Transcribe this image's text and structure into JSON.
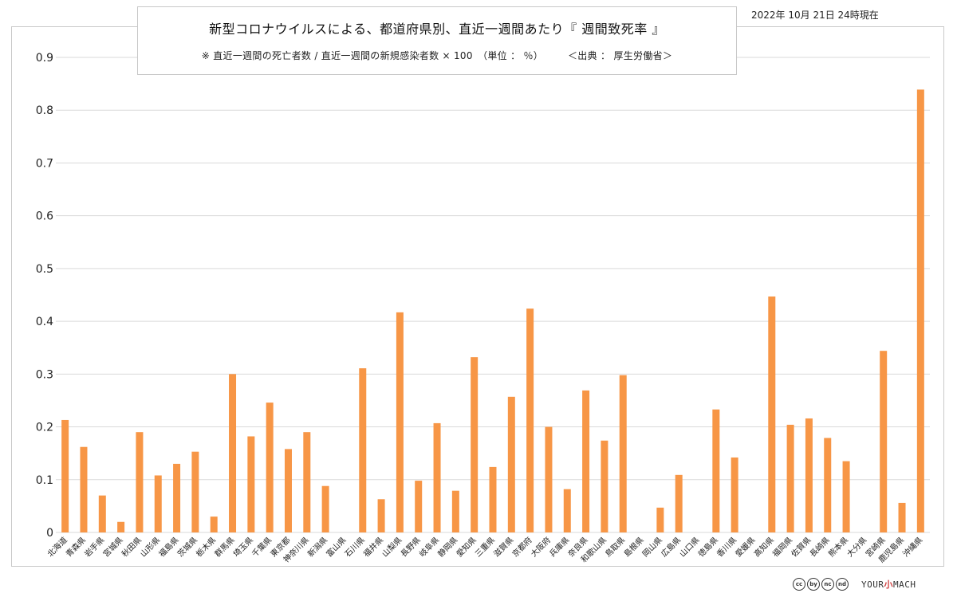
{
  "header": {
    "title": "新型コロナウイルスによる、都道府県別、直近一週間あたり『 週間致死率 』",
    "subtitle": "※ 直近一週間の死亡者数 / 直近一週間の新規感染者数 × 100　（単位 ： ％）　　　＜出典 ： 厚生労働省＞",
    "date": "2022年 10月 21日 24時現在"
  },
  "footer": {
    "license_icons": [
      "cc",
      "by",
      "nc",
      "nd"
    ],
    "brand_prefix": "YOUR",
    "brand_mid": "小",
    "brand_suffix": "MACH"
  },
  "colors": {
    "bar": "#f79646",
    "grid": "#d9d9d9",
    "axis_text": "#222222"
  },
  "chart_data": {
    "type": "bar",
    "title": "新型コロナウイルスによる、都道府県別、直近一週間あたり『 週間致死率 』",
    "ylim": [
      0,
      0.9
    ],
    "yticks": [
      "0",
      "0.1",
      "0.2",
      "0.3",
      "0.4",
      "0.5",
      "0.6",
      "0.7",
      "0.8",
      "0.9"
    ],
    "grid": true,
    "categories": [
      "北海道",
      "青森県",
      "岩手県",
      "宮城県",
      "秋田県",
      "山形県",
      "福島県",
      "茨城県",
      "栃木県",
      "群馬県",
      "埼玉県",
      "千葉県",
      "東京都",
      "神奈川県",
      "新潟県",
      "富山県",
      "石川県",
      "福井県",
      "山梨県",
      "長野県",
      "岐阜県",
      "静岡県",
      "愛知県",
      "三重県",
      "滋賀県",
      "京都府",
      "大阪府",
      "兵庫県",
      "奈良県",
      "和歌山県",
      "鳥取県",
      "島根県",
      "岡山県",
      "広島県",
      "山口県",
      "徳島県",
      "香川県",
      "愛媛県",
      "高知県",
      "福岡県",
      "佐賀県",
      "長崎県",
      "熊本県",
      "大分県",
      "宮崎県",
      "鹿児島県",
      "沖縄県"
    ],
    "values": [
      0.213,
      0.162,
      0.07,
      0.02,
      0.19,
      0.108,
      0.13,
      0.153,
      0.03,
      0.3,
      0.182,
      0.246,
      0.158,
      0.19,
      0.088,
      0,
      0.311,
      0.063,
      0.417,
      0.098,
      0.207,
      0.079,
      0.332,
      0.124,
      0.257,
      0.424,
      0.2,
      0.082,
      0.269,
      0.174,
      0.298,
      0,
      0.047,
      0.109,
      0,
      0.233,
      0.142,
      0,
      0.447,
      0.204,
      0.216,
      0.179,
      0.135,
      0,
      0.344,
      0.056,
      0.839
    ]
  }
}
